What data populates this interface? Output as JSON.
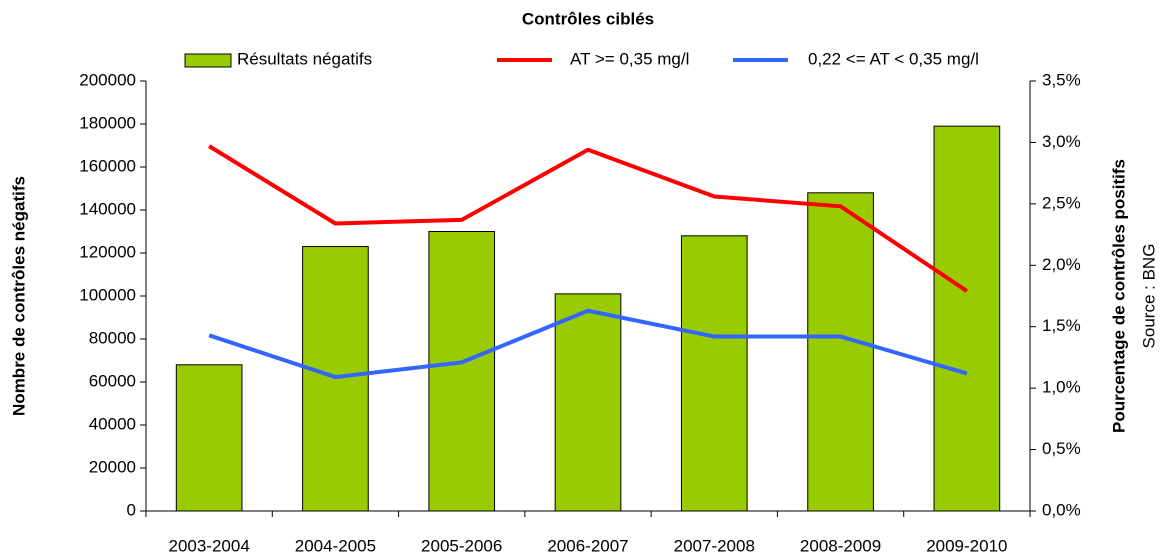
{
  "chart_data": {
    "type": "bar",
    "title": "Contrôles ciblés",
    "y_label": "Nombre de contrôles négatifs",
    "y2_label": "Pourcentage de contrôles positifs",
    "source": "Source : BNG",
    "categories": [
      "2003-2004",
      "2004-2005",
      "2005-2006",
      "2006-2007",
      "2007-2008",
      "2008-2009",
      "2009-2010"
    ],
    "series": [
      {
        "name": "Résultats négatifs",
        "type": "bar",
        "color": "#99cc00",
        "values": [
          68000,
          123000,
          130000,
          101000,
          128000,
          148000,
          179000
        ]
      },
      {
        "name": "AT >= 0,35 mg/l",
        "type": "line",
        "axis": "y2",
        "color": "#ff0000",
        "values": [
          2.97,
          2.34,
          2.37,
          2.94,
          2.56,
          2.48,
          1.79
        ]
      },
      {
        "name": "0,22 <= AT < 0,35 mg/l",
        "type": "line",
        "axis": "y2",
        "color": "#3366ff",
        "values": [
          1.43,
          1.09,
          1.21,
          1.63,
          1.42,
          1.42,
          1.12
        ]
      }
    ],
    "ylim": [
      0,
      200000
    ],
    "yticks": [
      0,
      20000,
      40000,
      60000,
      80000,
      100000,
      120000,
      140000,
      160000,
      180000,
      200000
    ],
    "y2lim": [
      0,
      3.5
    ],
    "y2ticks": [
      {
        "value": 0,
        "label": "0,0%"
      },
      {
        "value": 0.5,
        "label": "0,5%"
      },
      {
        "value": 1,
        "label": "1,0%"
      },
      {
        "value": 1.5,
        "label": "1,5%"
      },
      {
        "value": 2,
        "label": "2,0%"
      },
      {
        "value": 2.5,
        "label": "2,5%"
      },
      {
        "value": 3,
        "label": "3,0%"
      },
      {
        "value": 3.5,
        "label": "3,5%"
      }
    ],
    "grid": false
  }
}
